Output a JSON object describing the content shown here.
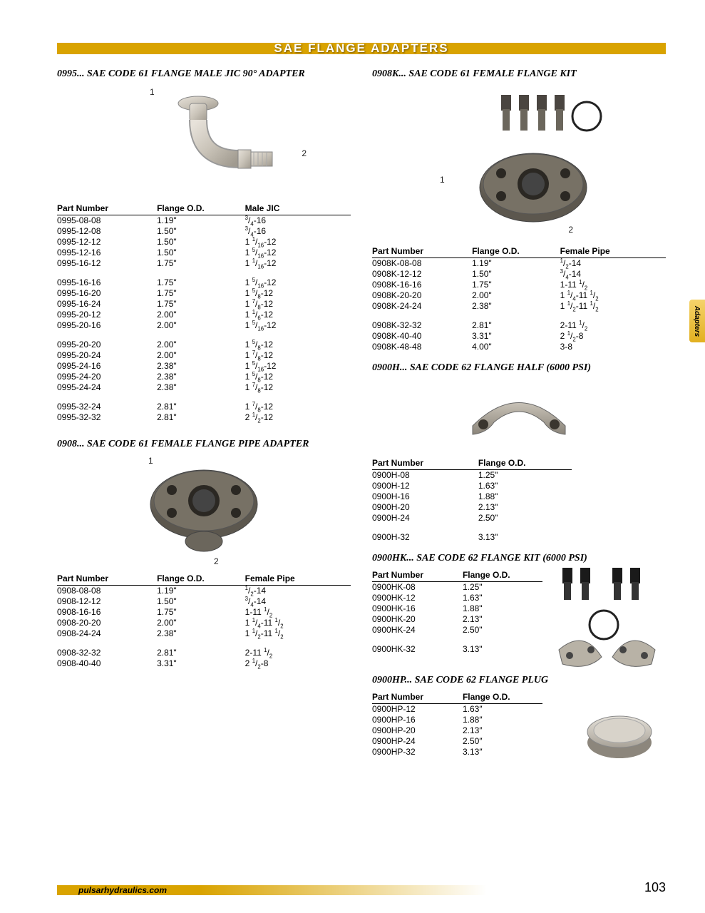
{
  "banner": "SAE FLANGE ADAPTERS",
  "side_tab": "Adapters",
  "footer_url": "pulsarhydraulics.com",
  "page_number": "103",
  "colors": {
    "banner_bg": "#d9a300",
    "banner_text": "#ffffff",
    "tab_grad_from": "#f5d36b",
    "tab_grad_to": "#e2b020",
    "rule": "#000000",
    "body_text": "#000000"
  },
  "sections": {
    "s0995": {
      "title": "0995...  SAE CODE 61 FLANGE MALE JIC 90° ADAPTER",
      "label1": "1",
      "label2": "2",
      "cols": [
        "Part Number",
        "Flange O.D.",
        "Male JIC"
      ],
      "rows": [
        [
          "0995-08-08",
          "1.19\"",
          "3/4-16"
        ],
        [
          "0995-12-08",
          "1.50\"",
          "3/4-16"
        ],
        [
          "0995-12-12",
          "1.50\"",
          "1 1/16-12"
        ],
        [
          "0995-12-16",
          "1.50\"",
          "1 5/16-12"
        ],
        [
          "0995-16-12",
          "1.75\"",
          "1 1/16-12"
        ],
        [],
        [
          "0995-16-16",
          "1.75\"",
          "1 5/16-12"
        ],
        [
          "0995-16-20",
          "1.75\"",
          "1 5/8-12"
        ],
        [
          "0995-16-24",
          "1.75\"",
          "1 7/8-12"
        ],
        [
          "0995-20-12",
          "2.00\"",
          "1 1/6-12"
        ],
        [
          "0995-20-16",
          "2.00\"",
          "1 5/16-12"
        ],
        [],
        [
          "0995-20-20",
          "2.00\"",
          "1 5/8-12"
        ],
        [
          "0995-20-24",
          "2.00\"",
          "1 7/8-12"
        ],
        [
          "0995-24-16",
          "2.38\"",
          "1 5/16-12"
        ],
        [
          "0995-24-20",
          "2.38\"",
          "1 5/8-12"
        ],
        [
          "0995-24-24",
          "2.38\"",
          "1 7/8-12"
        ],
        [],
        [
          "0995-32-24",
          "2.81\"",
          "1 7/8-12"
        ],
        [
          "0995-32-32",
          "2.81\"",
          "2 1/2-12"
        ]
      ]
    },
    "s0908": {
      "title": "0908...  SAE CODE 61 FEMALE FLANGE PIPE ADAPTER",
      "label1": "1",
      "label2": "2",
      "cols": [
        "Part Number",
        "Flange O.D.",
        "Female Pipe"
      ],
      "rows": [
        [
          "0908-08-08",
          "1.19\"",
          "1/2-14"
        ],
        [
          "0908-12-12",
          "1.50\"",
          "3/4-14"
        ],
        [
          "0908-16-16",
          "1.75\"",
          "1-11 1/2"
        ],
        [
          "0908-20-20",
          "2.00\"",
          "1 1/4-11 1/2"
        ],
        [
          "0908-24-24",
          "2.38\"",
          "1 1/2-11 1/2"
        ],
        [],
        [
          "0908-32-32",
          "2.81\"",
          "2-11 1/2"
        ],
        [
          "0908-40-40",
          "3.31\"",
          "2 1/2-8"
        ]
      ]
    },
    "s0908K": {
      "title": "0908K...  SAE CODE 61 FEMALE FLANGE KIT",
      "label1": "1",
      "label2": "2",
      "cols": [
        "Part Number",
        "Flange O.D.",
        "Female Pipe"
      ],
      "rows": [
        [
          "0908K-08-08",
          "1.19\"",
          "1/2-14"
        ],
        [
          "0908K-12-12",
          "1.50\"",
          "3/4-14"
        ],
        [
          "0908K-16-16",
          "1.75\"",
          "1-11 1/2"
        ],
        [
          "0908K-20-20",
          "2.00\"",
          "1 1/4-11 1/2"
        ],
        [
          "0908K-24-24",
          "2.38\"",
          "1 1/2-11 1/2"
        ],
        [],
        [
          "0908K-32-32",
          "2.81\"",
          "2-11 1/2"
        ],
        [
          "0908K-40-40",
          "3.31\"",
          "2 1/2-8"
        ],
        [
          "0908K-48-48",
          "4.00\"",
          "3-8"
        ]
      ]
    },
    "s0900H": {
      "title": "0900H...  SAE CODE 62 FLANGE HALF (6000 PSI)",
      "cols": [
        "Part Number",
        "Flange O.D."
      ],
      "rows": [
        [
          "0900H-08",
          "1.25\""
        ],
        [
          "0900H-12",
          "1.63\""
        ],
        [
          "0900H-16",
          "1.88\""
        ],
        [
          "0900H-20",
          "2.13\""
        ],
        [
          "0900H-24",
          "2.50\""
        ],
        [],
        [
          "0900H-32",
          "3.13\""
        ]
      ]
    },
    "s0900HK": {
      "title": "0900HK...  SAE CODE 62 FLANGE KIT  (6000 PSI)",
      "cols": [
        "Part Number",
        "Flange O.D."
      ],
      "rows": [
        [
          "0900HK-08",
          "1.25\""
        ],
        [
          "0900HK-12",
          "1.63\""
        ],
        [
          "0900HK-16",
          "1.88\""
        ],
        [
          "0900HK-20",
          "2.13\""
        ],
        [
          "0900HK-24",
          "2.50\""
        ],
        [],
        [
          "0900HK-32",
          "3.13\""
        ]
      ]
    },
    "s0900HP": {
      "title": "0900HP... SAE CODE 62 FLANGE PLUG",
      "cols": [
        "Part Number",
        "Flange O.D."
      ],
      "rows": [
        [
          "0900HP-12",
          "1.63″"
        ],
        [
          "0900HP-16",
          "1.88″"
        ],
        [
          "0900HP-20",
          "2.13″"
        ],
        [
          "0900HP-24",
          "2.50″"
        ],
        [
          "0900HP-32",
          "3.13″"
        ]
      ]
    }
  }
}
